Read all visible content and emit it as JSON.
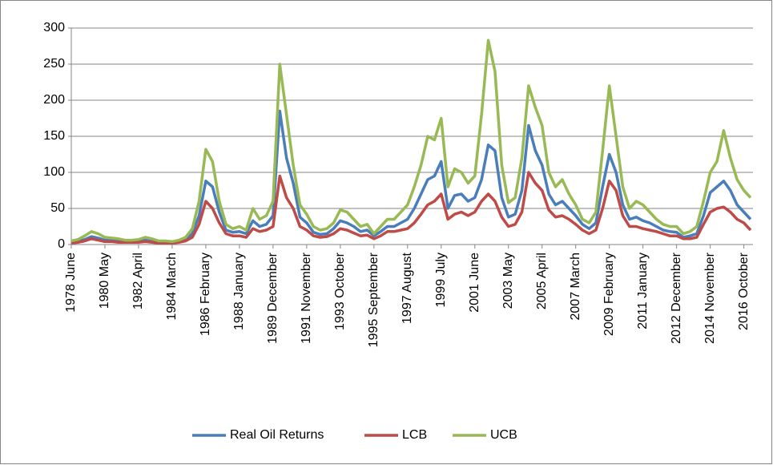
{
  "chart_data": {
    "type": "line",
    "categories": [
      "1978 June",
      null,
      null,
      null,
      null,
      "1980 May",
      null,
      null,
      null,
      null,
      "1982 April",
      null,
      null,
      null,
      null,
      "1984 March",
      null,
      null,
      null,
      null,
      "1986 February",
      null,
      null,
      null,
      null,
      "1988 January",
      null,
      null,
      null,
      null,
      "1989 December",
      null,
      null,
      null,
      null,
      "1991 November",
      null,
      null,
      null,
      null,
      "1993 October",
      null,
      null,
      null,
      null,
      "1995 September",
      null,
      null,
      null,
      null,
      "1997 August",
      null,
      null,
      null,
      null,
      "1999 July",
      null,
      null,
      null,
      null,
      "2001 June",
      null,
      null,
      null,
      null,
      "2003 May",
      null,
      null,
      null,
      null,
      "2005 April",
      null,
      null,
      null,
      null,
      "2007 March",
      null,
      null,
      null,
      null,
      "2009 February",
      null,
      null,
      null,
      null,
      "2011 January",
      null,
      null,
      null,
      null,
      "2012 December",
      null,
      null,
      null,
      null,
      "2014 November",
      null,
      null,
      null,
      null,
      "2016 October",
      null
    ],
    "series": [
      {
        "name": "Real Oil Returns",
        "color": "#4a7ebb",
        "values": [
          3,
          4,
          7,
          11,
          9,
          6,
          6,
          5,
          4,
          4,
          4,
          6,
          5,
          3,
          3,
          3,
          4,
          7,
          15,
          40,
          88,
          80,
          45,
          20,
          17,
          18,
          15,
          33,
          25,
          28,
          40,
          185,
          120,
          85,
          38,
          30,
          17,
          14,
          15,
          22,
          33,
          30,
          25,
          18,
          20,
          12,
          18,
          25,
          25,
          30,
          35,
          50,
          70,
          90,
          95,
          115,
          50,
          68,
          70,
          60,
          65,
          90,
          138,
          130,
          65,
          38,
          42,
          75,
          165,
          130,
          110,
          70,
          55,
          60,
          50,
          40,
          28,
          22,
          30,
          80,
          125,
          100,
          55,
          35,
          38,
          33,
          30,
          25,
          20,
          18,
          17,
          10,
          12,
          15,
          40,
          72,
          80,
          88,
          75,
          55,
          45,
          35
        ]
      },
      {
        "name": "LCB",
        "color": "#be4b48",
        "values": [
          2,
          3,
          5,
          8,
          6,
          4,
          4,
          3,
          3,
          3,
          3,
          4,
          3,
          2,
          2,
          2,
          3,
          5,
          10,
          28,
          60,
          50,
          30,
          15,
          12,
          12,
          10,
          22,
          18,
          20,
          25,
          95,
          65,
          50,
          25,
          20,
          12,
          10,
          11,
          15,
          22,
          20,
          16,
          12,
          13,
          8,
          12,
          18,
          18,
          20,
          22,
          30,
          42,
          55,
          60,
          70,
          35,
          42,
          45,
          40,
          45,
          60,
          70,
          60,
          38,
          25,
          28,
          45,
          100,
          85,
          75,
          48,
          38,
          40,
          35,
          28,
          20,
          15,
          20,
          50,
          88,
          75,
          40,
          25,
          25,
          22,
          20,
          18,
          15,
          12,
          12,
          8,
          8,
          10,
          28,
          45,
          50,
          52,
          45,
          35,
          30,
          20
        ]
      },
      {
        "name": "UCB",
        "color": "#98b954",
        "values": [
          5,
          7,
          12,
          18,
          15,
          10,
          9,
          8,
          6,
          6,
          7,
          10,
          8,
          5,
          5,
          4,
          6,
          10,
          22,
          60,
          132,
          115,
          60,
          28,
          22,
          25,
          20,
          50,
          35,
          40,
          60,
          250,
          180,
          110,
          55,
          42,
          25,
          20,
          22,
          30,
          48,
          45,
          35,
          25,
          28,
          15,
          25,
          35,
          35,
          45,
          55,
          80,
          110,
          150,
          145,
          175,
          80,
          105,
          100,
          85,
          95,
          180,
          283,
          240,
          110,
          58,
          65,
          120,
          220,
          190,
          165,
          100,
          80,
          90,
          70,
          55,
          35,
          30,
          45,
          130,
          220,
          150,
          80,
          50,
          60,
          55,
          45,
          35,
          28,
          25,
          25,
          15,
          18,
          25,
          60,
          100,
          115,
          158,
          120,
          90,
          75,
          65
        ]
      }
    ],
    "ylim": [
      0,
      300
    ],
    "yticks": [
      0,
      50,
      100,
      150,
      200,
      250,
      300
    ],
    "grid": true,
    "legend": "bottom"
  }
}
